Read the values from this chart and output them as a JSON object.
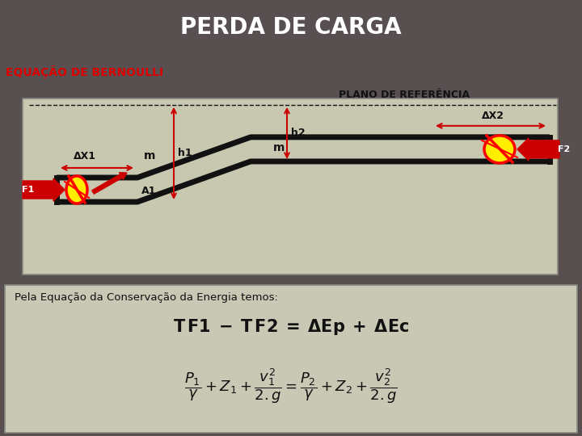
{
  "title": "PERDA DE CARGA",
  "subtitle": "EQUAÇÃO DE BERNOULLI",
  "title_bg": "#585050",
  "subtitle_color": "#dd0000",
  "diagram_bg": "#c8c8b0",
  "outer_bg": "#b0b09a",
  "text_color_white": "#ffffff",
  "text_color_black": "#111111",
  "pipe_color": "#111111",
  "arrow_color": "#cc0000",
  "yellow_color": "#ffee00",
  "formula_text": "Pela Equação da Conservação da Energia temos:",
  "bottom_bg": "#c8c8b4",
  "border_color": "#888880"
}
